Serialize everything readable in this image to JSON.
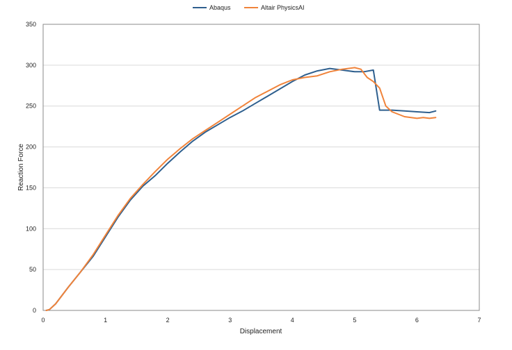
{
  "chart_data": {
    "type": "line",
    "title": "",
    "xlabel": "Displacement",
    "ylabel": "Reaction Force",
    "xlim": [
      0,
      7
    ],
    "ylim": [
      0,
      350
    ],
    "x_ticks": [
      "0",
      "1",
      "2",
      "3",
      "4",
      "5",
      "6",
      "7"
    ],
    "y_ticks": [
      "0",
      "50",
      "100",
      "150",
      "200",
      "250",
      "300",
      "350"
    ],
    "grid": "horizontal",
    "legend_position": "top-center",
    "series": [
      {
        "name": "Abaqus",
        "color": "#2e5f8e",
        "points": [
          [
            0.05,
            0
          ],
          [
            0.1,
            1
          ],
          [
            0.2,
            8
          ],
          [
            0.4,
            28
          ],
          [
            0.6,
            47
          ],
          [
            0.8,
            66
          ],
          [
            1.0,
            90
          ],
          [
            1.2,
            114
          ],
          [
            1.4,
            135
          ],
          [
            1.6,
            152
          ],
          [
            1.8,
            165
          ],
          [
            2.0,
            180
          ],
          [
            2.2,
            194
          ],
          [
            2.4,
            207
          ],
          [
            2.6,
            218
          ],
          [
            2.8,
            227
          ],
          [
            3.0,
            236
          ],
          [
            3.2,
            244
          ],
          [
            3.4,
            253
          ],
          [
            3.6,
            262
          ],
          [
            3.8,
            271
          ],
          [
            4.0,
            280
          ],
          [
            4.2,
            288
          ],
          [
            4.4,
            293
          ],
          [
            4.6,
            296
          ],
          [
            4.8,
            294
          ],
          [
            5.0,
            292
          ],
          [
            5.15,
            292
          ],
          [
            5.3,
            294
          ],
          [
            5.4,
            245
          ],
          [
            5.6,
            245
          ],
          [
            5.8,
            244
          ],
          [
            6.0,
            243
          ],
          [
            6.2,
            242
          ],
          [
            6.3,
            244
          ]
        ]
      },
      {
        "name": "Altair PhysicsAI",
        "color": "#f0833a",
        "points": [
          [
            0.05,
            0
          ],
          [
            0.1,
            1
          ],
          [
            0.2,
            8
          ],
          [
            0.4,
            28
          ],
          [
            0.6,
            47
          ],
          [
            0.8,
            68
          ],
          [
            1.0,
            92
          ],
          [
            1.2,
            116
          ],
          [
            1.4,
            137
          ],
          [
            1.6,
            154
          ],
          [
            1.8,
            170
          ],
          [
            2.0,
            185
          ],
          [
            2.2,
            198
          ],
          [
            2.4,
            210
          ],
          [
            2.6,
            220
          ],
          [
            2.8,
            230
          ],
          [
            3.0,
            240
          ],
          [
            3.2,
            250
          ],
          [
            3.4,
            260
          ],
          [
            3.6,
            268
          ],
          [
            3.8,
            276
          ],
          [
            4.0,
            282
          ],
          [
            4.2,
            285
          ],
          [
            4.4,
            287
          ],
          [
            4.6,
            292
          ],
          [
            4.8,
            295
          ],
          [
            5.0,
            297
          ],
          [
            5.1,
            295
          ],
          [
            5.2,
            285
          ],
          [
            5.3,
            280
          ],
          [
            5.4,
            272
          ],
          [
            5.5,
            250
          ],
          [
            5.6,
            243
          ],
          [
            5.7,
            240
          ],
          [
            5.8,
            237
          ],
          [
            6.0,
            235
          ],
          [
            6.1,
            236
          ],
          [
            6.2,
            235
          ],
          [
            6.3,
            236
          ]
        ]
      }
    ]
  }
}
